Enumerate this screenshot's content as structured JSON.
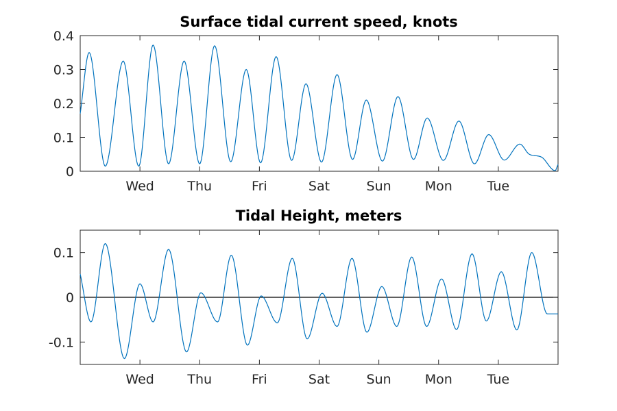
{
  "chart_data": [
    {
      "type": "line",
      "title": "Surface tidal current speed, knots",
      "xlabel": "",
      "ylabel": "",
      "xlim": [
        0,
        8
      ],
      "ylim": [
        0,
        0.4
      ],
      "yticks": [
        0,
        0.1,
        0.2,
        0.3,
        0.4
      ],
      "ytick_labels": [
        "0",
        "0.1",
        "0.2",
        "0.3",
        "0.4"
      ],
      "xtick_positions": [
        1,
        2,
        3,
        4,
        5,
        6,
        7
      ],
      "xtick_labels": [
        "Wed",
        "Thu",
        "Fri",
        "Sat",
        "Sun",
        "Mon",
        "Tue"
      ],
      "grid": false,
      "series_color": "#0072BD",
      "series": [
        {
          "x": [
            0,
            0.15,
            0.42,
            0.72,
            0.98,
            1.22,
            1.48,
            1.74,
            2.0,
            2.25,
            2.52,
            2.78,
            3.02,
            3.28,
            3.54,
            3.78,
            4.04,
            4.3,
            4.56,
            4.79,
            5.06,
            5.32,
            5.58,
            5.81,
            6.08,
            6.34,
            6.6,
            6.84,
            7.1,
            7.36,
            7.52,
            7.72,
            7.95,
            8.0
          ],
          "y": [
            0.17,
            0.35,
            0.015,
            0.325,
            0.015,
            0.372,
            0.022,
            0.325,
            0.022,
            0.37,
            0.028,
            0.3,
            0.025,
            0.338,
            0.032,
            0.258,
            0.027,
            0.285,
            0.035,
            0.21,
            0.03,
            0.22,
            0.035,
            0.157,
            0.032,
            0.148,
            0.022,
            0.108,
            0.033,
            0.08,
            0.05,
            0.042,
            0.002,
            0.02
          ]
        }
      ]
    },
    {
      "type": "line",
      "title": "Tidal Height, meters",
      "xlabel": "",
      "ylabel": "",
      "xlim": [
        0,
        8
      ],
      "ylim": [
        -0.15,
        0.15
      ],
      "yticks": [
        -0.1,
        0,
        0.1
      ],
      "ytick_labels": [
        "-0.1",
        "0",
        "0.1"
      ],
      "xtick_positions": [
        1,
        2,
        3,
        4,
        5,
        6,
        7
      ],
      "xtick_labels": [
        "Wed",
        "Thu",
        "Fri",
        "Sat",
        "Sun",
        "Mon",
        "Tue"
      ],
      "zero_line": true,
      "grid": false,
      "series_color": "#0072BD",
      "series": [
        {
          "x": [
            0,
            0.18,
            0.42,
            0.74,
            1.0,
            1.22,
            1.48,
            1.78,
            2.02,
            2.3,
            2.53,
            2.8,
            3.03,
            3.3,
            3.55,
            3.8,
            4.05,
            4.3,
            4.55,
            4.8,
            5.05,
            5.3,
            5.55,
            5.8,
            6.05,
            6.3,
            6.56,
            6.8,
            7.05,
            7.31,
            7.56,
            7.82,
            8.0
          ],
          "y": [
            0.052,
            -0.055,
            0.12,
            -0.137,
            0.03,
            -0.055,
            0.107,
            -0.122,
            0.01,
            -0.055,
            0.094,
            -0.107,
            0.003,
            -0.057,
            0.087,
            -0.093,
            0.009,
            -0.065,
            0.087,
            -0.078,
            0.024,
            -0.065,
            0.09,
            -0.065,
            0.041,
            -0.072,
            0.097,
            -0.053,
            0.057,
            -0.073,
            0.1,
            -0.037,
            -0.037
          ]
        }
      ]
    }
  ]
}
